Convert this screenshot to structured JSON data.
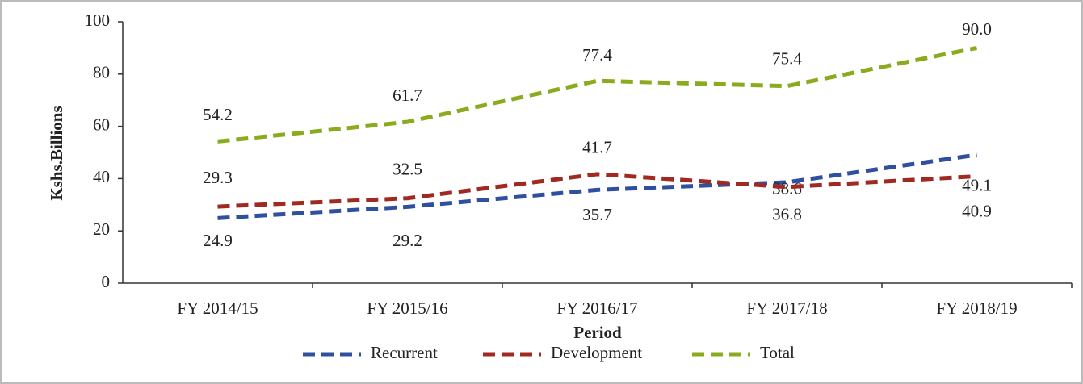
{
  "chart_data": {
    "type": "line",
    "categories": [
      "FY 2014/15",
      "FY 2015/16",
      "FY 2016/17",
      "FY 2017/18",
      "FY 2018/19"
    ],
    "series": [
      {
        "name": "Recurrent",
        "color": "#2f4f9f",
        "values": [
          24.9,
          29.2,
          35.7,
          38.6,
          49.1
        ]
      },
      {
        "name": "Development",
        "color": "#a02a22",
        "values": [
          29.3,
          32.5,
          41.7,
          36.8,
          40.9
        ]
      },
      {
        "name": "Total",
        "color": "#8bab1f",
        "values": [
          54.2,
          61.7,
          77.4,
          75.4,
          90.0
        ],
        "value_labels": [
          "54.2",
          "61.7",
          "77.4",
          "75.4",
          "90.0"
        ]
      }
    ],
    "xlabel": "Period",
    "ylabel": "Kshs.Billions",
    "ylim": [
      0,
      100
    ],
    "yticks": [
      0,
      20,
      40,
      60,
      80,
      100
    ],
    "grid": false,
    "legend": "bottom"
  }
}
